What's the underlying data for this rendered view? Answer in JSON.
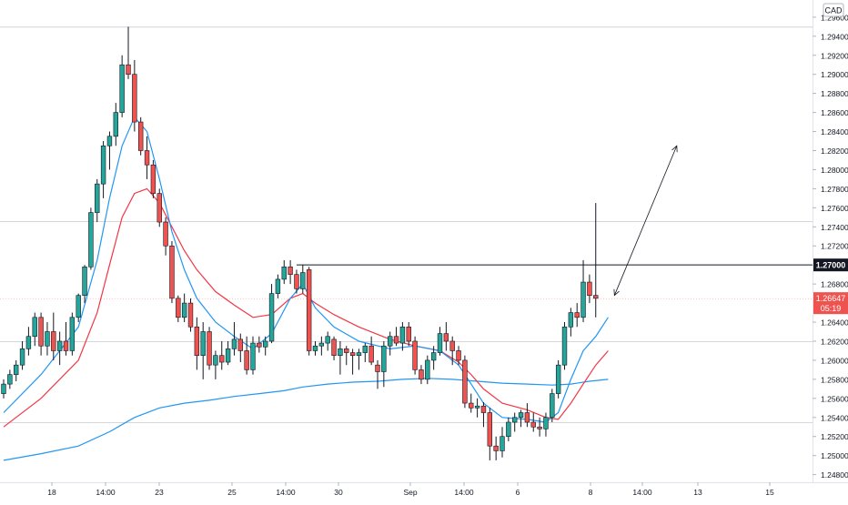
{
  "chart_data": {
    "type": "candlestick",
    "currency_badge": "CAD",
    "y_ticks": [
      "1.29600",
      "1.29400",
      "1.29200",
      "1.29000",
      "1.28800",
      "1.28600",
      "1.28400",
      "1.28200",
      "1.28000",
      "1.27800",
      "1.27600",
      "1.27400",
      "1.27200",
      "1.26800",
      "1.26400",
      "1.26200",
      "1.26000",
      "1.25800",
      "1.25600",
      "1.25400",
      "1.25200",
      "1.25000",
      "1.24800"
    ],
    "x_ticks": [
      "18",
      "14:00",
      "23",
      "25",
      "14:00",
      "30",
      "Sep",
      "14:00",
      "6",
      "8",
      "14:00",
      "13",
      "15"
    ],
    "ylim": [
      1.2472,
      1.2978
    ],
    "price_label": "1.26647",
    "countdown_label": "05:19",
    "level_label": "1.27000",
    "level_value": 1.27,
    "current_value": 1.26647,
    "horizontal_lines": [
      1.295,
      1.2746,
      1.262,
      1.2535
    ],
    "colors": {
      "up": "#26a69a",
      "down": "#ef5350",
      "ma_fast": "#2196f3",
      "ma_slow": "#f23645",
      "ma_long": "#2196f3",
      "level": "#131722"
    },
    "candles": [
      [
        1.2565,
        1.258,
        1.256,
        1.2575
      ],
      [
        1.2575,
        1.259,
        1.257,
        1.2585
      ],
      [
        1.2585,
        1.26,
        1.2578,
        1.2595
      ],
      [
        1.2595,
        1.262,
        1.259,
        1.2612
      ],
      [
        1.2612,
        1.2635,
        1.2605,
        1.2625
      ],
      [
        1.2625,
        1.265,
        1.2615,
        1.2645
      ],
      [
        1.2645,
        1.265,
        1.2605,
        1.2615
      ],
      [
        1.2615,
        1.264,
        1.2605,
        1.263
      ],
      [
        1.263,
        1.265,
        1.26,
        1.261
      ],
      [
        1.261,
        1.263,
        1.2595,
        1.262
      ],
      [
        1.262,
        1.264,
        1.2605,
        1.261
      ],
      [
        1.261,
        1.265,
        1.2605,
        1.2645
      ],
      [
        1.2645,
        1.267,
        1.264,
        1.2668
      ],
      [
        1.2668,
        1.27,
        1.266,
        1.2698
      ],
      [
        1.2698,
        1.276,
        1.2695,
        1.2755
      ],
      [
        1.2755,
        1.279,
        1.2745,
        1.2785
      ],
      [
        1.2785,
        1.283,
        1.277,
        1.2825
      ],
      [
        1.2825,
        1.284,
        1.28,
        1.2835
      ],
      [
        1.2835,
        1.287,
        1.2825,
        1.286
      ],
      [
        1.286,
        1.292,
        1.2855,
        1.291
      ],
      [
        1.291,
        1.295,
        1.2895,
        1.29
      ],
      [
        1.29,
        1.2915,
        1.284,
        1.285
      ],
      [
        1.285,
        1.2855,
        1.2815,
        1.282
      ],
      [
        1.282,
        1.2835,
        1.279,
        1.2805
      ],
      [
        1.2805,
        1.281,
        1.277,
        1.2775
      ],
      [
        1.2775,
        1.278,
        1.274,
        1.2745
      ],
      [
        1.2745,
        1.275,
        1.271,
        1.272
      ],
      [
        1.272,
        1.2725,
        1.266,
        1.2665
      ],
      [
        1.2665,
        1.2668,
        1.264,
        1.2645
      ],
      [
        1.2645,
        1.267,
        1.264,
        1.266
      ],
      [
        1.266,
        1.2665,
        1.263,
        1.2635
      ],
      [
        1.2635,
        1.2645,
        1.259,
        1.2605
      ],
      [
        1.2605,
        1.264,
        1.258,
        1.263
      ],
      [
        1.263,
        1.2635,
        1.259,
        1.2595
      ],
      [
        1.2595,
        1.261,
        1.258,
        1.2605
      ],
      [
        1.2605,
        1.262,
        1.259,
        1.2598
      ],
      [
        1.2598,
        1.262,
        1.2595,
        1.2612
      ],
      [
        1.2612,
        1.264,
        1.2605,
        1.2622
      ],
      [
        1.2622,
        1.2628,
        1.2598,
        1.261
      ],
      [
        1.261,
        1.2625,
        1.2585,
        1.259
      ],
      [
        1.259,
        1.2625,
        1.2585,
        1.2618
      ],
      [
        1.2618,
        1.2625,
        1.2608,
        1.2614
      ],
      [
        1.2614,
        1.2625,
        1.2605,
        1.262
      ],
      [
        1.262,
        1.268,
        1.2618,
        1.267
      ],
      [
        1.267,
        1.269,
        1.2665,
        1.2685
      ],
      [
        1.2685,
        1.2705,
        1.268,
        1.2698
      ],
      [
        1.2698,
        1.2705,
        1.268,
        1.269
      ],
      [
        1.269,
        1.2695,
        1.267,
        1.2675
      ],
      [
        1.2675,
        1.27,
        1.267,
        1.2692
      ],
      [
        1.2695,
        1.2698,
        1.2605,
        1.261
      ],
      [
        1.261,
        1.262,
        1.2605,
        1.2615
      ],
      [
        1.2615,
        1.2625,
        1.2605,
        1.2618
      ],
      [
        1.2618,
        1.263,
        1.261,
        1.2625
      ],
      [
        1.2622,
        1.2625,
        1.26,
        1.2605
      ],
      [
        1.2605,
        1.262,
        1.2585,
        1.2612
      ],
      [
        1.2612,
        1.2615,
        1.2595,
        1.2608
      ],
      [
        1.2608,
        1.2612,
        1.2585,
        1.2605
      ],
      [
        1.2605,
        1.2612,
        1.259,
        1.2608
      ],
      [
        1.2608,
        1.2618,
        1.2598,
        1.2615
      ],
      [
        1.2615,
        1.2625,
        1.2595,
        1.2598
      ],
      [
        1.2595,
        1.26,
        1.257,
        1.2588
      ],
      [
        1.2588,
        1.262,
        1.2572,
        1.2615
      ],
      [
        1.2615,
        1.263,
        1.2605,
        1.2625
      ],
      [
        1.2625,
        1.2635,
        1.2615,
        1.2618
      ],
      [
        1.2618,
        1.264,
        1.261,
        1.2635
      ],
      [
        1.2635,
        1.264,
        1.2615,
        1.262
      ],
      [
        1.262,
        1.2625,
        1.2585,
        1.259
      ],
      [
        1.259,
        1.2595,
        1.2575,
        1.258
      ],
      [
        1.258,
        1.2605,
        1.2575,
        1.26
      ],
      [
        1.26,
        1.2615,
        1.259,
        1.2608
      ],
      [
        1.2608,
        1.2635,
        1.2605,
        1.2628
      ],
      [
        1.2628,
        1.264,
        1.261,
        1.262
      ],
      [
        1.262,
        1.2625,
        1.2595,
        1.261
      ],
      [
        1.261,
        1.2615,
        1.2595,
        1.26
      ],
      [
        1.26,
        1.2605,
        1.255,
        1.2555
      ],
      [
        1.2555,
        1.2565,
        1.2545,
        1.255
      ],
      [
        1.255,
        1.256,
        1.254,
        1.2552
      ],
      [
        1.2552,
        1.2556,
        1.253,
        1.2545
      ],
      [
        1.2545,
        1.255,
        1.2495,
        1.251
      ],
      [
        1.251,
        1.252,
        1.2495,
        1.2505
      ],
      [
        1.2505,
        1.253,
        1.2498,
        1.252
      ],
      [
        1.252,
        1.254,
        1.2515,
        1.2535
      ],
      [
        1.2535,
        1.2545,
        1.2525,
        1.254
      ],
      [
        1.254,
        1.2548,
        1.253,
        1.2545
      ],
      [
        1.2545,
        1.2555,
        1.253,
        1.2535
      ],
      [
        1.2535,
        1.2545,
        1.2525,
        1.253
      ],
      [
        1.253,
        1.254,
        1.252,
        1.2528
      ],
      [
        1.2528,
        1.2545,
        1.252,
        1.254
      ],
      [
        1.254,
        1.257,
        1.2535,
        1.2565
      ],
      [
        1.2565,
        1.26,
        1.256,
        1.2595
      ],
      [
        1.2595,
        1.264,
        1.259,
        1.2635
      ],
      [
        1.2635,
        1.2655,
        1.2625,
        1.265
      ],
      [
        1.265,
        1.266,
        1.2635,
        1.2645
      ],
      [
        1.2645,
        1.2705,
        1.264,
        1.2682
      ],
      [
        1.2682,
        1.269,
        1.266,
        1.2668
      ],
      [
        1.2668,
        1.2765,
        1.2645,
        1.2665
      ]
    ],
    "ma_fast": [
      [
        0,
        1.2545
      ],
      [
        6,
        1.2585
      ],
      [
        12,
        1.2635
      ],
      [
        15,
        1.2705
      ],
      [
        17,
        1.277
      ],
      [
        19,
        1.2825
      ],
      [
        21,
        1.2855
      ],
      [
        23,
        1.284
      ],
      [
        25,
        1.279
      ],
      [
        27,
        1.2735
      ],
      [
        29,
        1.2695
      ],
      [
        31,
        1.2665
      ],
      [
        34,
        1.264
      ],
      [
        37,
        1.2625
      ],
      [
        40,
        1.2612
      ],
      [
        43,
        1.2628
      ],
      [
        46,
        1.2665
      ],
      [
        48,
        1.268
      ],
      [
        50,
        1.2655
      ],
      [
        53,
        1.2635
      ],
      [
        57,
        1.262
      ],
      [
        62,
        1.2612
      ],
      [
        66,
        1.2615
      ],
      [
        70,
        1.261
      ],
      [
        73,
        1.2595
      ],
      [
        75,
        1.2575
      ],
      [
        77,
        1.2555
      ],
      [
        80,
        1.254
      ],
      [
        84,
        1.2538
      ],
      [
        87,
        1.2535
      ],
      [
        89,
        1.2545
      ],
      [
        91,
        1.258
      ],
      [
        93,
        1.261
      ],
      [
        95,
        1.2625
      ],
      [
        97,
        1.2645
      ]
    ],
    "ma_slow": [
      [
        0,
        1.253
      ],
      [
        6,
        1.256
      ],
      [
        12,
        1.26
      ],
      [
        15,
        1.265
      ],
      [
        17,
        1.27
      ],
      [
        19,
        1.275
      ],
      [
        21,
        1.2775
      ],
      [
        23,
        1.278
      ],
      [
        25,
        1.2765
      ],
      [
        27,
        1.274
      ],
      [
        29,
        1.2715
      ],
      [
        31,
        1.2695
      ],
      [
        34,
        1.2672
      ],
      [
        37,
        1.2658
      ],
      [
        40,
        1.2645
      ],
      [
        43,
        1.2648
      ],
      [
        46,
        1.2665
      ],
      [
        48,
        1.267
      ],
      [
        50,
        1.266
      ],
      [
        53,
        1.2648
      ],
      [
        57,
        1.2635
      ],
      [
        62,
        1.2622
      ],
      [
        66,
        1.2615
      ],
      [
        70,
        1.261
      ],
      [
        73,
        1.2598
      ],
      [
        75,
        1.2585
      ],
      [
        77,
        1.257
      ],
      [
        80,
        1.2555
      ],
      [
        84,
        1.2548
      ],
      [
        87,
        1.254
      ],
      [
        89,
        1.2538
      ],
      [
        91,
        1.2555
      ],
      [
        93,
        1.2575
      ],
      [
        95,
        1.2595
      ],
      [
        97,
        1.261
      ]
    ],
    "ma_long": [
      [
        0,
        1.2495
      ],
      [
        6,
        1.2502
      ],
      [
        12,
        1.251
      ],
      [
        17,
        1.2525
      ],
      [
        21,
        1.254
      ],
      [
        25,
        1.255
      ],
      [
        29,
        1.2555
      ],
      [
        33,
        1.2558
      ],
      [
        37,
        1.2562
      ],
      [
        41,
        1.2565
      ],
      [
        45,
        1.2568
      ],
      [
        48,
        1.2572
      ],
      [
        52,
        1.2575
      ],
      [
        56,
        1.2577
      ],
      [
        60,
        1.2578
      ],
      [
        64,
        1.258
      ],
      [
        68,
        1.2581
      ],
      [
        72,
        1.258
      ],
      [
        76,
        1.2578
      ],
      [
        80,
        1.2576
      ],
      [
        84,
        1.2575
      ],
      [
        88,
        1.2574
      ],
      [
        91,
        1.2575
      ],
      [
        94,
        1.2578
      ],
      [
        97,
        1.258
      ]
    ],
    "arrow_from": [
      98,
      1.2668
    ],
    "arrow_to": [
      108,
      1.2825
    ]
  }
}
